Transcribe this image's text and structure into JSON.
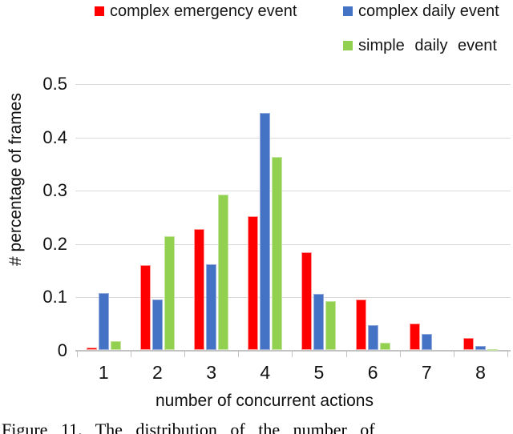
{
  "chart_data": {
    "type": "bar",
    "title": "",
    "xlabel": "number of concurrent actions",
    "ylabel": "# percentage of frames",
    "categories": [
      "1",
      "2",
      "3",
      "4",
      "5",
      "6",
      "7",
      "8"
    ],
    "series": [
      {
        "name": "complex emergency event",
        "color": "#fe0000",
        "edge_color": "#ff9d9d",
        "values": [
          0.006,
          0.16,
          0.228,
          0.252,
          0.184,
          0.096,
          0.051,
          0.023
        ]
      },
      {
        "name": "complex daily event",
        "color": "#4472c4",
        "edge_color": "#97aedd",
        "values": [
          0.107,
          0.095,
          0.161,
          0.446,
          0.106,
          0.047,
          0.031,
          0.008
        ]
      },
      {
        "name": "simple daily event",
        "color": "#92d050",
        "edge_color": "#c6e5a2",
        "values": [
          0.018,
          0.215,
          0.293,
          0.363,
          0.092,
          0.015,
          0,
          0.003
        ]
      }
    ],
    "ylim": [
      0,
      0.5
    ],
    "yticks": [
      0,
      0.1,
      0.2,
      0.3,
      0.4,
      0.5
    ],
    "ytick_labels": [
      "0",
      "0.1",
      "0.2",
      "0.3",
      "0.4",
      "0.5"
    ],
    "grid": true,
    "legend_position": "top"
  },
  "colors": {
    "gridline": "#d9d9d9",
    "axis": "#c3c3c3",
    "background": "#ffffff"
  },
  "caption": "Figure 11. The distribution of the number of"
}
